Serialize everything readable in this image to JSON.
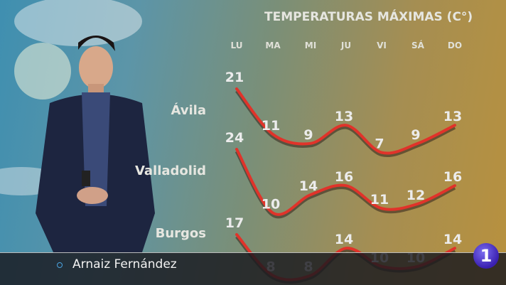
{
  "chart_data": {
    "type": "line",
    "title": "TEMPERATURAS MÁXIMAS (C°)",
    "categories": [
      "LU",
      "MA",
      "MI",
      "JU",
      "VI",
      "SÁ",
      "DO"
    ],
    "series": [
      {
        "name": "Ávila",
        "values": [
          21,
          11,
          9,
          13,
          7,
          9,
          13
        ]
      },
      {
        "name": "Valladolid",
        "values": [
          24,
          10,
          14,
          16,
          11,
          12,
          16
        ]
      },
      {
        "name": "Burgos",
        "values": [
          17,
          8,
          8,
          14,
          10,
          10,
          14
        ]
      }
    ],
    "line_color": "#e0332a"
  },
  "lower_third": {
    "name": "Arnaiz Fernández"
  },
  "logo": {
    "text": "1"
  }
}
